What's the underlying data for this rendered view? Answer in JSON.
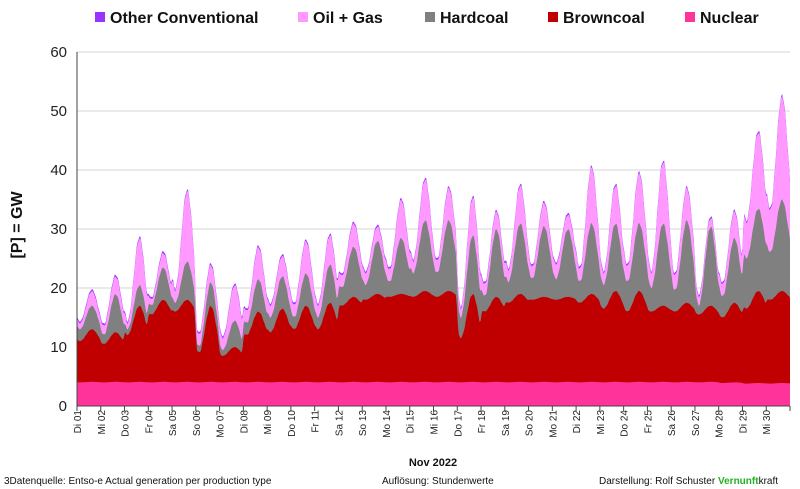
{
  "chart_data": {
    "type": "area",
    "stacked": true,
    "ylabel": "[P] = GW",
    "xlabel": "Nov 2022",
    "ylim": [
      0,
      60
    ],
    "yticks": [
      0,
      10,
      20,
      30,
      40,
      50,
      60
    ],
    "grid": true,
    "legend_position": "top",
    "resolution": "hourly",
    "categories": [
      "Di 01",
      "Mi 02",
      "Do 03",
      "Fr 04",
      "Sa 05",
      "So 06",
      "Mo 07",
      "Di 08",
      "Mi 09",
      "Do 10",
      "Fr 11",
      "Sa 12",
      "So 13",
      "Mo 14",
      "Di 15",
      "Mi 16",
      "Do 17",
      "Fr 18",
      "Sa 19",
      "So 20",
      "Mo 21",
      "Di 22",
      "Mi 23",
      "Do 24",
      "Fr 25",
      "Sa 26",
      "So 27",
      "Mo 28",
      "Di 29",
      "Mi 30"
    ],
    "series": [
      {
        "name": "Nuclear",
        "color": "#ff3399",
        "day_min": [
          4,
          4,
          4,
          4,
          4,
          4,
          4,
          4,
          4,
          4,
          4,
          4,
          4,
          4,
          4,
          4,
          4,
          4,
          4,
          4,
          4,
          4,
          4,
          4,
          4,
          4,
          4,
          3.9,
          3.8,
          3.8
        ],
        "day_max": [
          4.1,
          4.1,
          4.1,
          4.1,
          4.1,
          4.1,
          4.1,
          4.1,
          4.1,
          4.1,
          4.1,
          4.1,
          4.1,
          4.1,
          4.1,
          4.1,
          4.1,
          4.1,
          4.1,
          4.1,
          4.1,
          4.1,
          4.1,
          4.1,
          4.1,
          4.1,
          4.1,
          4,
          3.9,
          3.9
        ]
      },
      {
        "name": "Browncoal",
        "color": "#c00000",
        "day_min": [
          11,
          10.5,
          12,
          15.5,
          16,
          9,
          8.5,
          12,
          12.5,
          13,
          13,
          17,
          18,
          18.5,
          18.5,
          18.5,
          11.5,
          16,
          17.5,
          18,
          18,
          17.5,
          16.5,
          16,
          16,
          16,
          15.5,
          15,
          16.5,
          18
        ],
        "day_max": [
          13,
          12.5,
          17,
          18,
          18,
          17,
          10,
          16,
          16.5,
          17,
          17.5,
          18.5,
          19,
          19,
          19.5,
          19.5,
          19,
          18.5,
          19,
          18.5,
          18.5,
          19,
          19.5,
          19.5,
          17,
          17.5,
          17,
          17.5,
          19.5,
          19.5
        ]
      },
      {
        "name": "Hardcoal",
        "color": "#808080",
        "day_min": [
          13,
          12,
          13,
          17,
          17.5,
          10,
          9.5,
          14,
          15,
          15,
          15,
          20,
          20.5,
          21,
          22.5,
          22.5,
          15,
          18.5,
          21,
          21.5,
          21.5,
          21,
          20.5,
          21,
          20,
          19.5,
          17,
          18.5,
          25,
          26
        ],
        "day_max": [
          17,
          19,
          20.5,
          23.5,
          24.5,
          21,
          14.5,
          21.5,
          22,
          22.5,
          24,
          27,
          28,
          28.5,
          31.5,
          31.5,
          29,
          30,
          31,
          30.5,
          30,
          31,
          31,
          31,
          31,
          31.5,
          30.5,
          28.5,
          33.5,
          35
        ]
      },
      {
        "name": "Oil + Gas",
        "color": "#ff99ff",
        "day_min": [
          14,
          13.5,
          14,
          18,
          19.5,
          12,
          11.5,
          16,
          17,
          17,
          17,
          22,
          22.5,
          23,
          24.5,
          24.5,
          16.5,
          20.5,
          23,
          23.5,
          24,
          23,
          22.5,
          23.5,
          22.5,
          22,
          18.5,
          20.5,
          31,
          33
        ],
        "day_max": [
          19.5,
          22,
          28.5,
          26,
          36.5,
          24,
          20.5,
          27,
          25.5,
          28,
          29,
          31,
          30.5,
          35,
          38.5,
          37,
          35.5,
          33,
          37.5,
          34.5,
          32.5,
          40.5,
          37.5,
          39.5,
          41.5,
          37,
          32,
          33,
          46.5,
          52.5
        ]
      },
      {
        "name": "Other Conventional",
        "color": "#9933ff",
        "day_min": [
          14.3,
          13.8,
          14.3,
          18.3,
          19.8,
          12.3,
          11.8,
          16.3,
          17.3,
          17.3,
          17.3,
          22.3,
          22.8,
          23.3,
          24.8,
          24.8,
          16.8,
          20.8,
          23.3,
          23.8,
          24.3,
          23.3,
          22.8,
          23.8,
          22.8,
          22.3,
          18.8,
          20.8,
          31.3,
          33.3
        ],
        "day_max": [
          19.8,
          22.3,
          28.8,
          26.3,
          36.8,
          24.3,
          20.8,
          27.3,
          25.8,
          28.3,
          29.3,
          31.3,
          30.8,
          35.3,
          38.8,
          37.3,
          35.8,
          33.3,
          37.8,
          34.8,
          32.8,
          40.8,
          37.8,
          39.8,
          41.8,
          37.3,
          32.3,
          33.3,
          46.8,
          52.8
        ]
      }
    ]
  },
  "footer": {
    "source": "3Datenquelle: Entso-e  Actual generation per production type",
    "resolution": "Auflösung: Stundenwerte",
    "author": "Darstellung:  Rolf Schuster",
    "brand_green": "Vernunft",
    "brand_rest": "kraft"
  }
}
